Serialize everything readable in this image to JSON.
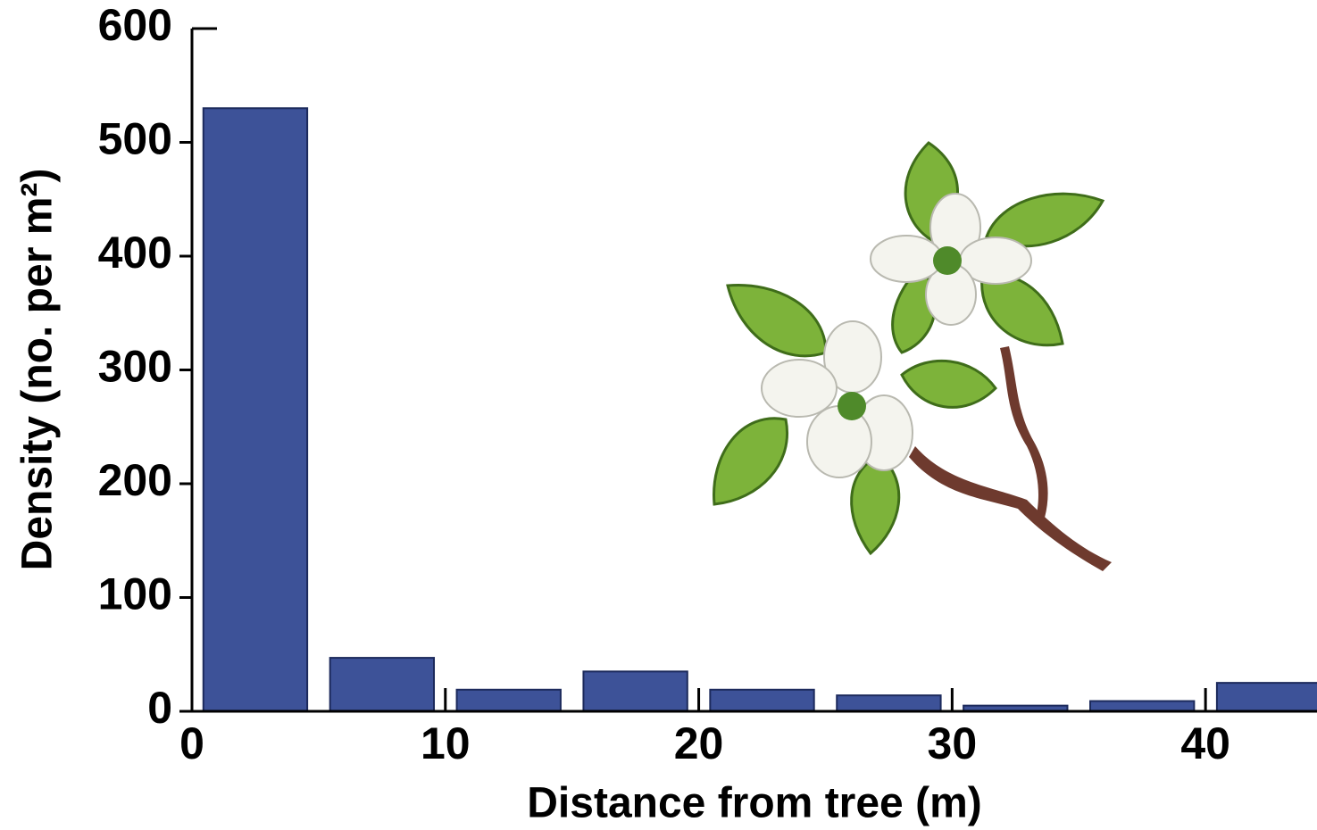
{
  "chart_data": {
    "type": "histogram",
    "x_label": "Distance from tree (m)",
    "y_label": "Density (no. per m²)",
    "bins": [
      0,
      5,
      10,
      15,
      20,
      25,
      30,
      35,
      40,
      45
    ],
    "values": [
      530,
      47,
      19,
      35,
      19,
      14,
      5,
      9,
      25
    ],
    "color": "#3d5298",
    "xlim": [
      0,
      44.4
    ],
    "ylim": [
      0,
      600
    ],
    "xticks": [
      0,
      10,
      20,
      30,
      40
    ],
    "yticks": [
      0,
      100,
      200,
      300,
      400,
      500,
      600
    ]
  }
}
